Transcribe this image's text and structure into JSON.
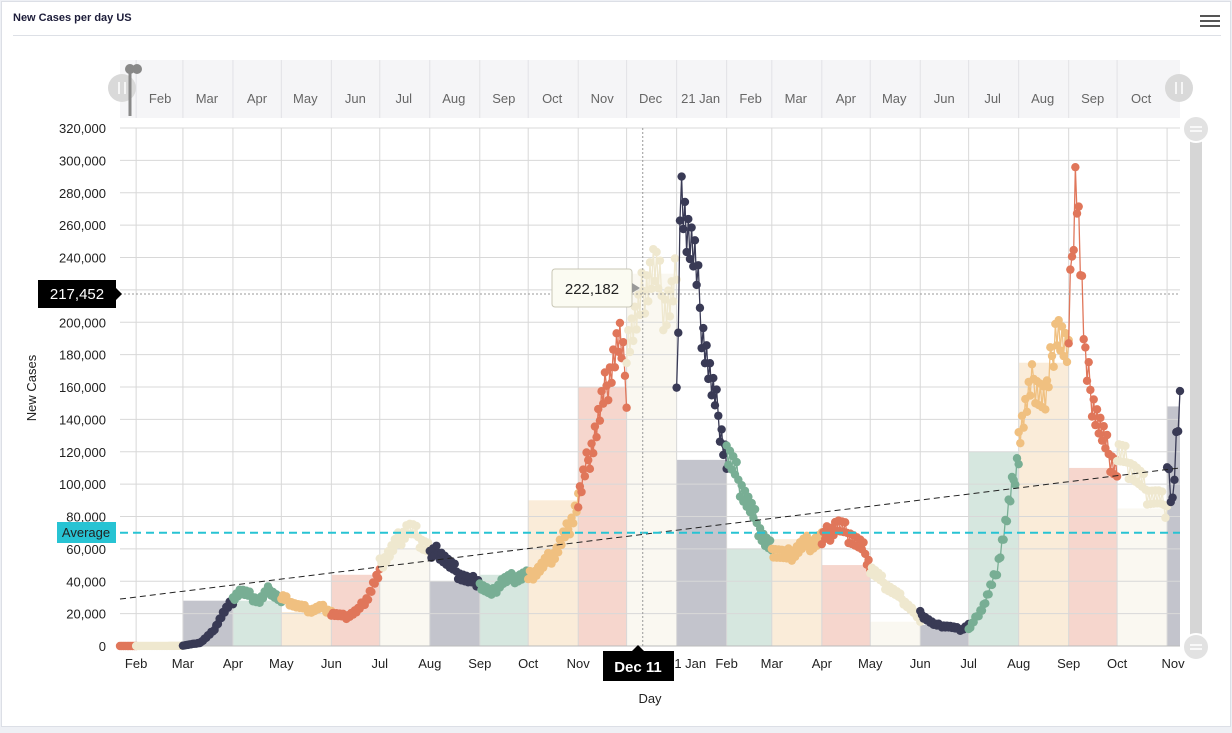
{
  "panel": {
    "title": "New Cases per day US"
  },
  "tooltip": {
    "value": "222,182"
  },
  "crosshair": {
    "x_label": "Dec 11",
    "y_label": "217,452"
  },
  "average_label": "Average",
  "colors": {
    "dark": "#393a55",
    "green": "#78ae94",
    "orange": "#f0c080",
    "red": "#e0765a",
    "cream": "#efe8cf",
    "average": "#27c3d3"
  },
  "chart_data": {
    "type": "line",
    "title": "",
    "xlabel": "Day",
    "ylabel": "New Cases",
    "ylim": [
      0,
      320000
    ],
    "yticks": [
      "0",
      "20,000",
      "40,000",
      "60,000",
      "80,000",
      "100,000",
      "120,000",
      "140,000",
      "160,000",
      "180,000",
      "200,000",
      "220,000",
      "240,000",
      "260,000",
      "280,000",
      "300,000",
      "320,000"
    ],
    "xticks": [
      "Feb",
      "Mar",
      "Apr",
      "May",
      "Jun",
      "Jul",
      "Aug",
      "Sep",
      "Oct",
      "Nov",
      "Dec 11",
      "21 Jan",
      "Feb",
      "Mar",
      "Apr",
      "May",
      "Jun",
      "Jul",
      "Aug",
      "Sep",
      "Oct",
      "Nov"
    ],
    "navigator_ticks": [
      "Feb",
      "Mar",
      "Apr",
      "May",
      "Jun",
      "Jul",
      "Aug",
      "Sep",
      "Oct",
      "Nov",
      "Dec",
      "21 Jan",
      "Feb",
      "Mar",
      "Apr",
      "May",
      "Jun",
      "Jul",
      "Aug",
      "Sep",
      "Oct"
    ],
    "average": 70000,
    "trend": {
      "start": 29000,
      "end": 110000
    },
    "grid": true,
    "x_start": "2020-01-22",
    "x_end": "2021-11-09",
    "series": [
      {
        "color": "red",
        "from": "2020-01-22",
        "to": "2020-02-01",
        "anchors": [
          [
            0,
            0
          ],
          [
            1,
            0
          ]
        ]
      },
      {
        "color": "cream",
        "from": "2020-02-01",
        "to": "2020-03-01",
        "anchors": [
          [
            0,
            0
          ],
          [
            1,
            100
          ]
        ]
      },
      {
        "color": "dark",
        "from": "2020-03-01",
        "to": "2020-04-01",
        "anchors": [
          [
            0,
            200
          ],
          [
            0.35,
            2000
          ],
          [
            0.6,
            9000
          ],
          [
            0.8,
            20000
          ],
          [
            1,
            28000
          ]
        ]
      },
      {
        "color": "green",
        "from": "2020-04-01",
        "to": "2020-05-01",
        "anchors": [
          [
            0,
            30000
          ],
          [
            0.15,
            34000
          ],
          [
            0.35,
            31000
          ],
          [
            0.55,
            28000
          ],
          [
            0.75,
            35000
          ],
          [
            1,
            28000
          ]
        ]
      },
      {
        "color": "orange",
        "from": "2020-05-01",
        "to": "2020-06-01",
        "anchors": [
          [
            0,
            30000
          ],
          [
            0.3,
            25000
          ],
          [
            0.6,
            22000
          ],
          [
            0.8,
            24000
          ],
          [
            1,
            21000
          ]
        ]
      },
      {
        "color": "red",
        "from": "2020-06-01",
        "to": "2020-07-01",
        "anchors": [
          [
            0,
            20000
          ],
          [
            0.3,
            18000
          ],
          [
            0.55,
            22000
          ],
          [
            0.75,
            30000
          ],
          [
            0.9,
            40000
          ],
          [
            1,
            44000
          ]
        ]
      },
      {
        "color": "cream",
        "from": "2020-07-01",
        "to": "2020-08-01",
        "anchors": [
          [
            0,
            50000
          ],
          [
            0.3,
            62000
          ],
          [
            0.55,
            73000
          ],
          [
            0.7,
            70000
          ],
          [
            0.85,
            64000
          ],
          [
            1,
            60000
          ]
        ]
      },
      {
        "color": "dark",
        "from": "2020-08-01",
        "to": "2020-09-01",
        "anchors": [
          [
            0,
            56000
          ],
          [
            0.2,
            58000
          ],
          [
            0.4,
            50000
          ],
          [
            0.6,
            44000
          ],
          [
            0.8,
            40000
          ],
          [
            1,
            40000
          ]
        ]
      },
      {
        "color": "green",
        "from": "2020-09-01",
        "to": "2020-10-01",
        "anchors": [
          [
            0,
            38000
          ],
          [
            0.25,
            32000
          ],
          [
            0.45,
            40000
          ],
          [
            0.7,
            42000
          ],
          [
            1,
            44000
          ]
        ]
      },
      {
        "color": "orange",
        "from": "2020-10-01",
        "to": "2020-11-01",
        "anchors": [
          [
            0,
            42000
          ],
          [
            0.3,
            50000
          ],
          [
            0.55,
            58000
          ],
          [
            0.8,
            72000
          ],
          [
            1,
            90000
          ]
        ]
      },
      {
        "color": "red",
        "from": "2020-11-01",
        "to": "2020-12-01",
        "anchors": [
          [
            0,
            90000
          ],
          [
            0.25,
            120000
          ],
          [
            0.5,
            150000
          ],
          [
            0.7,
            175000
          ],
          [
            0.85,
            190000
          ],
          [
            1,
            160000
          ]
        ]
      },
      {
        "color": "cream",
        "from": "2020-12-01",
        "to": "2021-01-01",
        "anchors": [
          [
            0,
            190000
          ],
          [
            0.25,
            205000
          ],
          [
            0.35,
            222182
          ],
          [
            0.55,
            235000
          ],
          [
            0.75,
            210000
          ],
          [
            0.9,
            215000
          ],
          [
            1,
            230000
          ]
        ]
      },
      {
        "color": "dark",
        "from": "2021-01-01",
        "to": "2021-02-01",
        "anchors": [
          [
            0,
            150000
          ],
          [
            0.1,
            290000
          ],
          [
            0.2,
            260000
          ],
          [
            0.35,
            240000
          ],
          [
            0.5,
            200000
          ],
          [
            0.7,
            160000
          ],
          [
            0.85,
            140000
          ],
          [
            1,
            115000
          ]
        ]
      },
      {
        "color": "green",
        "from": "2021-02-01",
        "to": "2021-03-01",
        "anchors": [
          [
            0,
            120000
          ],
          [
            0.3,
            100000
          ],
          [
            0.6,
            80000
          ],
          [
            0.85,
            65000
          ],
          [
            1,
            60000
          ]
        ]
      },
      {
        "color": "orange",
        "from": "2021-03-01",
        "to": "2021-04-01",
        "anchors": [
          [
            0,
            60000
          ],
          [
            0.3,
            55000
          ],
          [
            0.6,
            62000
          ],
          [
            1,
            66000
          ]
        ]
      },
      {
        "color": "red",
        "from": "2021-04-01",
        "to": "2021-05-01",
        "anchors": [
          [
            0,
            65000
          ],
          [
            0.3,
            75000
          ],
          [
            0.6,
            68000
          ],
          [
            0.85,
            60000
          ],
          [
            1,
            50000
          ]
        ]
      },
      {
        "color": "cream",
        "from": "2021-05-01",
        "to": "2021-06-01",
        "anchors": [
          [
            0,
            48000
          ],
          [
            0.3,
            38000
          ],
          [
            0.6,
            30000
          ],
          [
            0.85,
            22000
          ],
          [
            1,
            15000
          ]
        ]
      },
      {
        "color": "dark",
        "from": "2021-06-01",
        "to": "2021-07-01",
        "anchors": [
          [
            0,
            20000
          ],
          [
            0.3,
            13000
          ],
          [
            0.6,
            12000
          ],
          [
            0.85,
            10000
          ],
          [
            1,
            13000
          ]
        ]
      },
      {
        "color": "green",
        "from": "2021-07-01",
        "to": "2021-08-01",
        "anchors": [
          [
            0,
            10000
          ],
          [
            0.3,
            25000
          ],
          [
            0.55,
            45000
          ],
          [
            0.8,
            85000
          ],
          [
            1,
            120000
          ]
        ]
      },
      {
        "color": "orange",
        "from": "2021-08-01",
        "to": "2021-09-01",
        "anchors": [
          [
            0,
            130000
          ],
          [
            0.3,
            165000
          ],
          [
            0.55,
            150000
          ],
          [
            0.75,
            200000
          ],
          [
            1,
            175000
          ]
        ]
      },
      {
        "color": "red",
        "from": "2021-09-01",
        "to": "2021-10-01",
        "anchors": [
          [
            0,
            190000
          ],
          [
            0.15,
            300000
          ],
          [
            0.35,
            170000
          ],
          [
            0.6,
            140000
          ],
          [
            0.8,
            120000
          ],
          [
            1,
            110000
          ]
        ]
      },
      {
        "color": "cream",
        "from": "2021-10-01",
        "to": "2021-11-01",
        "anchors": [
          [
            0,
            120000
          ],
          [
            0.3,
            110000
          ],
          [
            0.6,
            95000
          ],
          [
            0.85,
            90000
          ],
          [
            1,
            85000
          ]
        ]
      },
      {
        "color": "dark",
        "from": "2021-11-01",
        "to": "2021-11-09",
        "anchors": [
          [
            0,
            120000
          ],
          [
            0.4,
            85000
          ],
          [
            0.7,
            125000
          ],
          [
            1,
            148000
          ]
        ]
      }
    ]
  }
}
